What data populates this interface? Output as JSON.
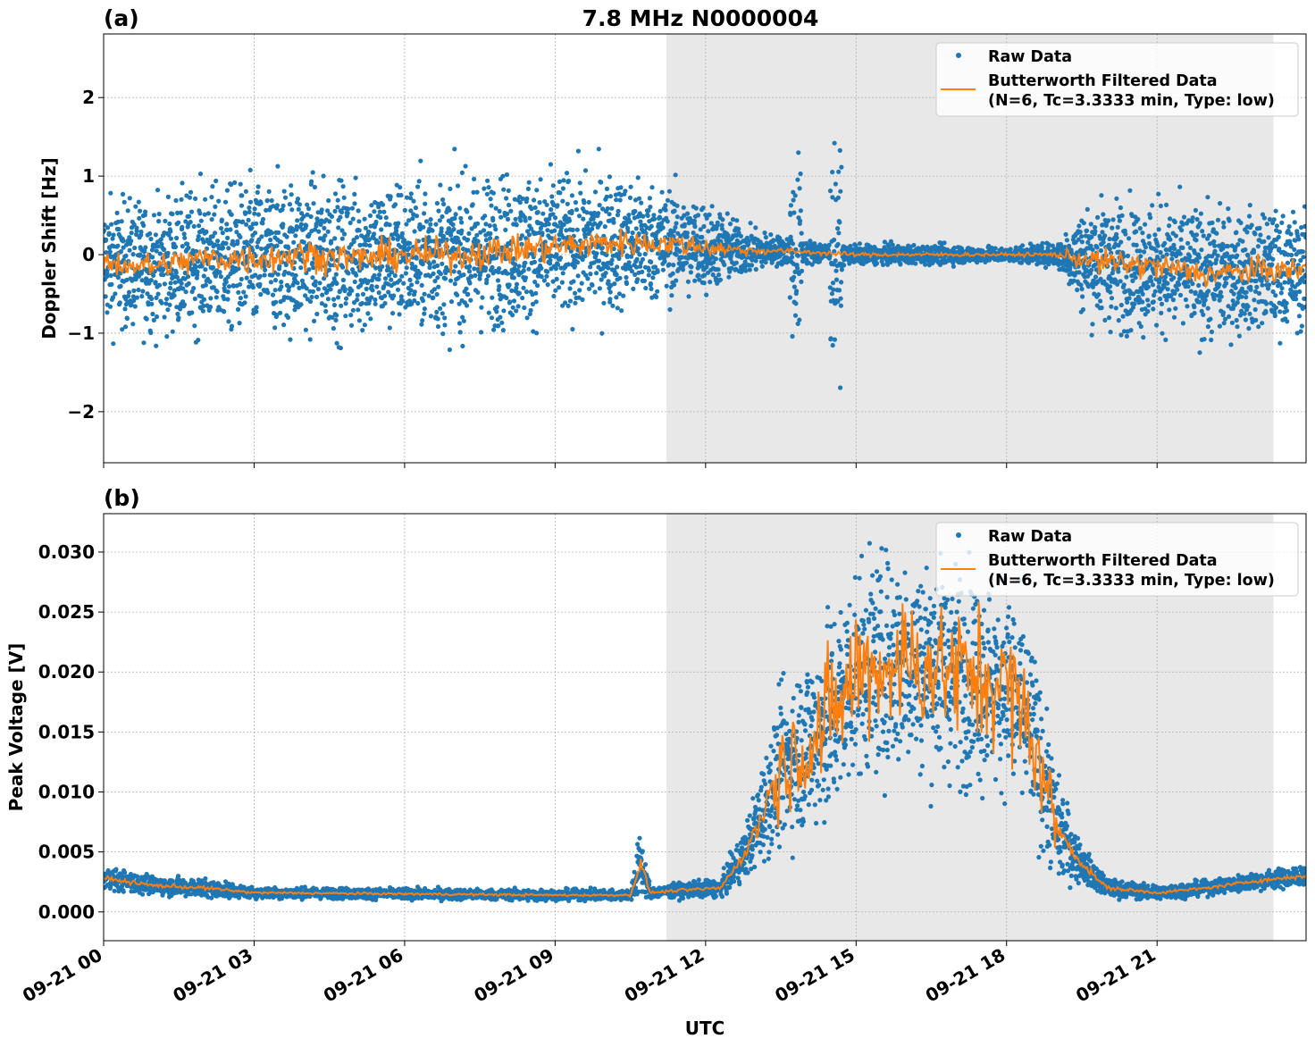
{
  "title": "7.8 MHz N0000004",
  "chart_data": [
    {
      "type": "scatter",
      "panel_label": "(a)",
      "ylabel": "Doppler Shift [Hz]",
      "xlabel": "",
      "xlim_hours": [
        0,
        23.97
      ],
      "ylim": [
        -2.65,
        2.81
      ],
      "yticks": [
        -2,
        -1,
        0,
        1,
        2
      ],
      "ytick_labels": [
        "−2",
        "−1",
        "0",
        "1",
        "2"
      ],
      "grid": true,
      "legend_placement": "top-right",
      "shaded_span_hours": [
        11.22,
        23.32
      ],
      "series": [
        {
          "name": "Raw Data",
          "color": "#1f77b4",
          "style": "points"
        },
        {
          "name": "Butterworth Filtered Data\n(N=6, Tc=3.3333 min, Type: low)",
          "color": "#ff7f0e",
          "style": "line"
        }
      ],
      "profile_hours": [
        0,
        1,
        2,
        3,
        4,
        5,
        6,
        7,
        8,
        9,
        10,
        11,
        12,
        12.8,
        13.5,
        15,
        17,
        18,
        19,
        19.5,
        20,
        21,
        22,
        23,
        24
      ],
      "filtered_approx": [
        -0.1,
        -0.15,
        -0.05,
        -0.05,
        0,
        -0.05,
        0,
        0,
        0.05,
        0.1,
        0.15,
        0.15,
        0.1,
        0.05,
        0.05,
        0,
        0,
        0,
        0,
        -0.05,
        -0.1,
        -0.15,
        -0.25,
        -0.2,
        -0.2
      ],
      "raw_spread_std": [
        0.55,
        0.55,
        0.6,
        0.65,
        0.65,
        0.65,
        0.65,
        0.65,
        0.65,
        0.6,
        0.6,
        0.5,
        0.4,
        0.2,
        0.12,
        0.08,
        0.08,
        0.06,
        0.1,
        0.45,
        0.55,
        0.55,
        0.55,
        0.5,
        0.5
      ],
      "bursts_hours": [
        13.8,
        14.6
      ],
      "burst_amplitude": 1.6
    },
    {
      "type": "scatter",
      "panel_label": "(b)",
      "ylabel": "Peak Voltage [V]",
      "xlabel": "UTC",
      "xlim_hours": [
        0,
        23.97
      ],
      "ylim": [
        -0.0024,
        0.0332
      ],
      "yticks": [
        0,
        0.005,
        0.01,
        0.015,
        0.02,
        0.025,
        0.03
      ],
      "ytick_labels": [
        "0.000",
        "0.005",
        "0.010",
        "0.015",
        "0.020",
        "0.025",
        "0.030"
      ],
      "grid": true,
      "legend_placement": "top-right",
      "shaded_span_hours": [
        11.22,
        23.32
      ],
      "series": [
        {
          "name": "Raw Data",
          "color": "#1f77b4",
          "style": "points"
        },
        {
          "name": "Butterworth Filtered Data\n(N=6, Tc=3.3333 min, Type: low)",
          "color": "#ff7f0e",
          "style": "line"
        }
      ],
      "profile_hours": [
        0,
        1,
        2,
        3,
        6,
        9,
        10.5,
        10.7,
        10.9,
        11.5,
        12.3,
        12.8,
        13.5,
        14.5,
        15,
        16,
        17,
        18,
        18.5,
        19,
        19.5,
        20,
        21,
        22,
        23,
        24
      ],
      "filtered_approx": [
        0.0028,
        0.0022,
        0.002,
        0.0016,
        0.0015,
        0.0014,
        0.0014,
        0.004,
        0.0016,
        0.0018,
        0.002,
        0.005,
        0.012,
        0.016,
        0.02,
        0.021,
        0.02,
        0.019,
        0.015,
        0.007,
        0.004,
        0.002,
        0.0016,
        0.002,
        0.0026,
        0.003
      ],
      "raw_spread_std": [
        0.0006,
        0.0005,
        0.0005,
        0.0003,
        0.0003,
        0.0003,
        0.0003,
        0.002,
        0.0003,
        0.0004,
        0.0005,
        0.0015,
        0.004,
        0.006,
        0.006,
        0.006,
        0.006,
        0.006,
        0.005,
        0.003,
        0.001,
        0.0005,
        0.0004,
        0.0004,
        0.0005,
        0.0006
      ]
    }
  ],
  "xtick_labels": [
    "09-21 00",
    "09-21 03",
    "09-21 06",
    "09-21 09",
    "09-21 12",
    "09-21 15",
    "09-21 18",
    "09-21 21"
  ],
  "xtick_hours": [
    0,
    3,
    6,
    9,
    12,
    15,
    18,
    21
  ],
  "legend": {
    "raw": "Raw Data",
    "filt1": "Butterworth Filtered Data",
    "filt2": "(N=6, Tc=3.3333 min, Type: low)"
  }
}
